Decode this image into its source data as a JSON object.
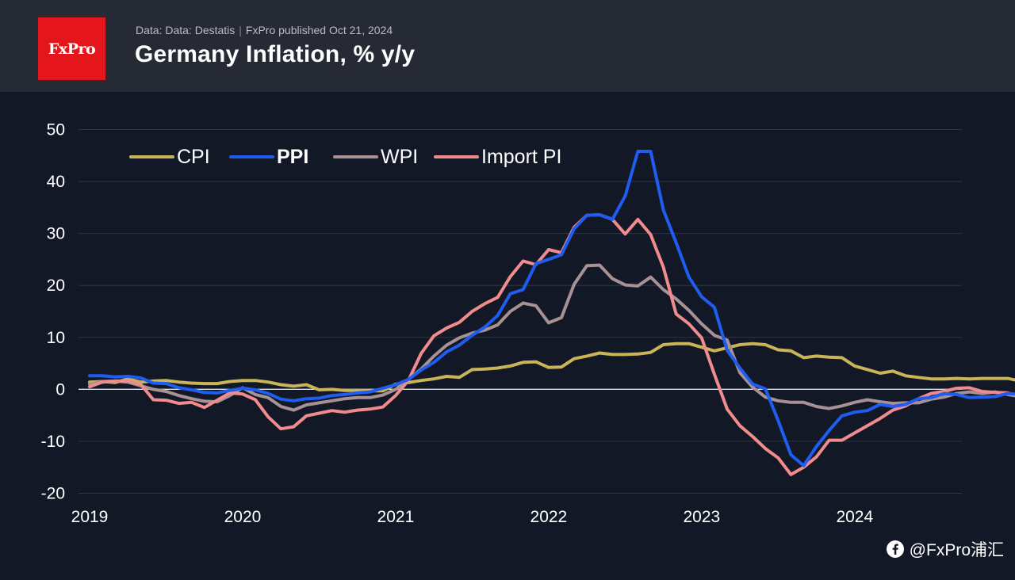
{
  "header": {
    "logo_text": "FxPro",
    "source_text": "Data: Data: Destatis",
    "published_text": "FxPro published Oct 21, 2024",
    "title": "Germany Inflation, % y/y"
  },
  "watermark": {
    "text": "@FxPro浦汇",
    "icon": "social-logo-icon"
  },
  "colors": {
    "background": "#121826",
    "header_bg": "#262a34",
    "brand_red": "#e4161b",
    "cpi": "#c9b458",
    "ppi": "#1f5cf0",
    "wpi": "#a89194",
    "import_pi": "#f08b8e"
  },
  "chart_data": {
    "type": "line",
    "title": "Germany Inflation, % y/y",
    "xlabel": "",
    "ylabel": "",
    "x_start": "2019-01",
    "x_ticks": [
      "2019",
      "2020",
      "2021",
      "2022",
      "2023",
      "2024"
    ],
    "y_ticks": [
      50,
      40,
      30,
      20,
      10,
      0,
      -10,
      -20
    ],
    "ylim": [
      -20,
      50
    ],
    "grid": true,
    "legend_position": "top-left",
    "series": [
      {
        "name": "CPI",
        "color": "#c9b458",
        "bold": false,
        "values": [
          1.4,
          1.5,
          1.3,
          2.0,
          1.4,
          1.6,
          1.7,
          1.4,
          1.2,
          1.1,
          1.1,
          1.5,
          1.7,
          1.7,
          1.4,
          0.9,
          0.6,
          0.9,
          -0.1,
          0.0,
          -0.2,
          -0.2,
          -0.3,
          -0.3,
          1.0,
          1.3,
          1.7,
          2.0,
          2.5,
          2.3,
          3.8,
          3.9,
          4.1,
          4.5,
          5.2,
          5.3,
          4.2,
          4.3,
          5.9,
          6.4,
          7.0,
          6.7,
          6.7,
          6.8,
          7.1,
          8.6,
          8.8,
          8.8,
          8.1,
          7.4,
          8.0,
          8.6,
          8.8,
          8.6,
          7.6,
          7.4,
          6.1,
          6.4,
          6.2,
          6.1,
          4.5,
          3.8,
          3.1,
          3.5,
          2.6,
          2.3,
          2.0,
          2.0,
          2.1,
          2.0,
          2.1,
          2.1,
          2.1,
          1.6
        ]
      },
      {
        "name": "PPI",
        "color": "#1f5cf0",
        "bold": true,
        "values": [
          2.6,
          2.6,
          2.4,
          2.5,
          2.2,
          1.2,
          1.1,
          0.3,
          -0.1,
          -0.6,
          -0.7,
          -0.2,
          0.2,
          -0.1,
          -0.8,
          -1.9,
          -2.2,
          -1.8,
          -1.7,
          -1.2,
          -1.0,
          -0.7,
          -0.5,
          0.2,
          0.9,
          1.9,
          3.7,
          5.2,
          7.2,
          8.5,
          10.4,
          12.0,
          14.2,
          18.4,
          19.2,
          24.2,
          25.0,
          25.9,
          30.9,
          33.5,
          33.6,
          32.7,
          37.2,
          45.8,
          45.8,
          34.5,
          28.2,
          21.6,
          17.8,
          15.8,
          7.5,
          4.1,
          1.0,
          0.1,
          -6.0,
          -12.6,
          -14.7,
          -11.0,
          -7.9,
          -5.1,
          -4.4,
          -4.1,
          -2.9,
          -3.3,
          -2.9,
          -1.8,
          -1.6,
          -0.8,
          -1.0,
          -1.6,
          -1.5,
          -1.4,
          -0.8,
          -1.0
        ]
      },
      {
        "name": "WPI",
        "color": "#a89194",
        "bold": false,
        "values": [
          1.0,
          1.5,
          1.6,
          1.4,
          0.7,
          0.0,
          -0.4,
          -1.2,
          -1.8,
          -2.3,
          -2.4,
          -1.2,
          0.3,
          -1.0,
          -1.6,
          -3.3,
          -4.0,
          -3.0,
          -2.6,
          -2.2,
          -1.8,
          -1.6,
          -1.6,
          -1.1,
          0.0,
          1.9,
          3.9,
          6.4,
          8.5,
          9.9,
          10.8,
          11.4,
          12.4,
          15.0,
          16.6,
          16.1,
          12.8,
          13.8,
          20.2,
          23.8,
          23.9,
          21.3,
          20.1,
          19.9,
          21.6,
          19.2,
          17.4,
          15.2,
          12.6,
          10.4,
          9.5,
          3.2,
          0.4,
          -1.5,
          -2.2,
          -2.5,
          -2.5,
          -3.3,
          -3.7,
          -3.2,
          -2.5,
          -2.0,
          -2.4,
          -2.7,
          -2.6,
          -2.6,
          -1.9,
          -1.5,
          -0.8,
          -0.5,
          -0.8,
          -0.5,
          -1.0,
          -1.4
        ]
      },
      {
        "name": "Import PI",
        "color": "#f08b8e",
        "bold": false,
        "values": [
          0.5,
          1.4,
          1.6,
          1.6,
          1.0,
          -2.0,
          -2.1,
          -2.7,
          -2.5,
          -3.5,
          -2.1,
          -0.7,
          -0.9,
          -2.0,
          -5.3,
          -7.6,
          -7.2,
          -5.1,
          -4.6,
          -4.1,
          -4.4,
          -4.0,
          -3.8,
          -3.4,
          -1.2,
          1.7,
          6.9,
          10.3,
          11.8,
          12.9,
          15.0,
          16.5,
          17.7,
          21.7,
          24.7,
          24.0,
          26.9,
          26.3,
          31.2,
          33.5,
          33.6,
          32.7,
          29.9,
          32.7,
          29.8,
          23.5,
          14.5,
          12.6,
          9.9,
          2.9,
          -3.8,
          -7.0,
          -9.1,
          -11.4,
          -13.2,
          -16.4,
          -15.0,
          -13.0,
          -9.8,
          -9.8,
          -8.4,
          -7.0,
          -5.6,
          -4.0,
          -3.2,
          -1.8,
          -0.8,
          -0.4,
          0.2,
          0.3,
          -0.4,
          -0.6,
          -0.7,
          -1.4
        ]
      }
    ]
  }
}
